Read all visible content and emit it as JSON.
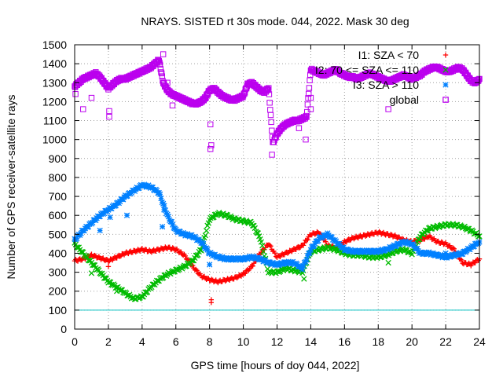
{
  "chart_data": {
    "type": "scatter",
    "title": "NRAYS. SISTED rt 30s mode. 044, 2022. Mask 30 deg",
    "xlabel": "GPS time [hours of doy 044, 2022]",
    "ylabel": "Number of GPS receiver-satellite rays",
    "xlim": [
      0,
      24
    ],
    "ylim": [
      0,
      1500
    ],
    "xticks": [
      "0",
      "2",
      "4",
      "6",
      "8",
      "10",
      "12",
      "14",
      "16",
      "18",
      "20",
      "22",
      "24"
    ],
    "yticks": [
      "0",
      "100",
      "200",
      "300",
      "400",
      "500",
      "600",
      "700",
      "800",
      "900",
      "1000",
      "1100",
      "1200",
      "1300",
      "1400",
      "1500"
    ],
    "grid": true,
    "legend_position": "top-right",
    "reference_line": {
      "y": 100,
      "color": "#00c0c0"
    },
    "series": [
      {
        "name": "I1: SZA < 70",
        "marker": "+",
        "color": "#ff0000",
        "x": [
          0,
          0.5,
          1,
          1.5,
          2,
          2.5,
          3,
          3.5,
          4,
          4.5,
          5,
          5.5,
          6,
          6.5,
          7,
          7.5,
          8,
          8.5,
          9,
          9.5,
          10,
          10.5,
          11,
          11.5,
          12,
          12.5,
          13,
          13.5,
          14,
          14.5,
          15,
          15.5,
          16,
          16.5,
          17,
          17.5,
          18,
          18.5,
          19,
          19.5,
          20,
          20.5,
          21,
          21.5,
          22,
          22.5,
          23,
          23.5,
          24
        ],
        "y": [
          360,
          370,
          390,
          375,
          360,
          380,
          400,
          410,
          420,
          410,
          420,
          430,
          420,
          390,
          330,
          280,
          260,
          250,
          260,
          270,
          290,
          330,
          400,
          450,
          380,
          400,
          420,
          440,
          500,
          510,
          440,
          430,
          460,
          480,
          490,
          500,
          510,
          500,
          490,
          470,
          460,
          470,
          490,
          460,
          450,
          420,
          350,
          340,
          370
        ]
      },
      {
        "name": "I2: 70 <= SZA <= 110",
        "marker": "x",
        "color": "#00bb00",
        "x": [
          0,
          0.5,
          1,
          1.5,
          2,
          2.5,
          3,
          3.5,
          4,
          4.5,
          5,
          5.5,
          6,
          6.5,
          7,
          7.5,
          8,
          8.5,
          9,
          9.5,
          10,
          10.5,
          11,
          11.5,
          12,
          12.5,
          13,
          13.5,
          14,
          14.5,
          15,
          15.5,
          16,
          16.5,
          17,
          17.5,
          18,
          18.5,
          19,
          19.5,
          20,
          20.5,
          21,
          21.5,
          22,
          22.5,
          23,
          23.5,
          24
        ],
        "y": [
          450,
          400,
          350,
          300,
          250,
          220,
          190,
          160,
          170,
          220,
          260,
          290,
          310,
          330,
          360,
          420,
          580,
          610,
          600,
          580,
          570,
          560,
          480,
          300,
          300,
          320,
          310,
          300,
          410,
          420,
          430,
          420,
          400,
          390,
          390,
          380,
          380,
          390,
          410,
          420,
          400,
          490,
          530,
          540,
          550,
          550,
          540,
          520,
          490
        ]
      },
      {
        "name": "I3: SZA > 110",
        "marker": "*",
        "color": "#0080ff",
        "x": [
          0,
          0.5,
          1,
          1.5,
          2,
          2.5,
          3,
          3.5,
          4,
          4.5,
          5,
          5.5,
          6,
          6.5,
          7,
          7.5,
          8,
          8.5,
          9,
          9.5,
          10,
          10.5,
          11,
          11.5,
          12,
          12.5,
          13,
          13.5,
          14,
          14.5,
          15,
          15.5,
          16,
          16.5,
          17,
          17.5,
          18,
          18.5,
          19,
          19.5,
          20,
          20.5,
          21,
          21.5,
          22,
          22.5,
          23,
          23.5,
          24
        ],
        "y": [
          470,
          520,
          560,
          600,
          630,
          660,
          700,
          730,
          760,
          750,
          720,
          600,
          520,
          500,
          490,
          460,
          400,
          380,
          370,
          370,
          370,
          380,
          370,
          350,
          340,
          350,
          350,
          320,
          420,
          480,
          500,
          460,
          420,
          410,
          410,
          410,
          410,
          420,
          440,
          460,
          450,
          400,
          400,
          390,
          380,
          390,
          400,
          430,
          460
        ]
      },
      {
        "name": "global",
        "marker": "square",
        "color": "#bb00ee",
        "x": [
          0,
          0.25,
          0.5,
          0.75,
          1,
          1.25,
          1.5,
          1.75,
          2,
          2.25,
          2.5,
          2.75,
          3,
          3.25,
          3.5,
          3.75,
          4,
          4.25,
          4.5,
          4.75,
          5,
          5.25,
          5.5,
          5.75,
          6,
          6.25,
          6.5,
          6.75,
          7,
          7.25,
          7.5,
          7.75,
          8,
          8.25,
          8.5,
          8.75,
          9,
          9.25,
          9.5,
          9.75,
          10,
          10.25,
          10.5,
          10.75,
          11,
          11.25,
          11.5,
          11.75,
          12,
          12.25,
          12.5,
          12.75,
          13,
          13.25,
          13.5,
          13.75,
          14,
          14.25,
          14.5,
          14.75,
          15,
          15.25,
          15.5,
          15.75,
          16,
          16.25,
          16.5,
          16.75,
          17,
          17.25,
          17.5,
          17.75,
          18,
          18.25,
          18.5,
          18.75,
          19,
          19.25,
          19.5,
          19.75,
          20,
          20.25,
          20.5,
          20.75,
          21,
          21.25,
          21.5,
          21.75,
          22,
          22.25,
          22.5,
          22.75,
          23,
          23.25,
          23.5,
          23.75,
          24
        ],
        "y": [
          1280,
          1300,
          1320,
          1330,
          1340,
          1350,
          1330,
          1300,
          1270,
          1290,
          1310,
          1320,
          1320,
          1330,
          1340,
          1350,
          1360,
          1370,
          1380,
          1400,
          1420,
          1300,
          1260,
          1240,
          1230,
          1220,
          1210,
          1200,
          1190,
          1190,
          1200,
          1220,
          1260,
          1270,
          1250,
          1230,
          1220,
          1210,
          1210,
          1220,
          1230,
          1290,
          1300,
          1280,
          1260,
          1250,
          1270,
          980,
          1030,
          1060,
          1080,
          1090,
          1100,
          1100,
          1110,
          1120,
          1370,
          1360,
          1350,
          1340,
          1350,
          1360,
          1370,
          1350,
          1340,
          1330,
          1330,
          1320,
          1330,
          1340,
          1350,
          1340,
          1330,
          1320,
          1310,
          1310,
          1320,
          1330,
          1340,
          1330,
          1320,
          1330,
          1340,
          1360,
          1370,
          1380,
          1380,
          1370,
          1360,
          1360,
          1370,
          1380,
          1370,
          1340,
          1310,
          1300,
          1320
        ]
      }
    ],
    "outliers": [
      {
        "series": "I1: SZA < 70",
        "x": 8.1,
        "y": 140
      },
      {
        "series": "I1: SZA < 70",
        "x": 8.1,
        "y": 155
      },
      {
        "series": "I1: SZA < 70",
        "x": 2.0,
        "y": 330
      },
      {
        "series": "I2: 70 <= SZA <= 110",
        "x": 1.0,
        "y": 295
      },
      {
        "series": "I2: 70 <= SZA <= 110",
        "x": 2.5,
        "y": 200
      },
      {
        "series": "I2: 70 <= SZA <= 110",
        "x": 18.6,
        "y": 350
      },
      {
        "series": "I2: 70 <= SZA <= 110",
        "x": 13.6,
        "y": 265
      },
      {
        "series": "I3: SZA > 110",
        "x": 1.5,
        "y": 520
      },
      {
        "series": "I3: SZA > 110",
        "x": 2.1,
        "y": 590
      },
      {
        "series": "I3: SZA > 110",
        "x": 3.1,
        "y": 600
      },
      {
        "series": "I3: SZA > 110",
        "x": 5.3,
        "y": 630
      },
      {
        "series": "I3: SZA > 110",
        "x": 5.2,
        "y": 540
      },
      {
        "series": "I3: SZA > 110",
        "x": 8.0,
        "y": 340
      },
      {
        "series": "I3: SZA > 110",
        "x": 22.0,
        "y": 400
      },
      {
        "series": "global",
        "x": 0.05,
        "y": 1240
      },
      {
        "series": "global",
        "x": 0.5,
        "y": 1160
      },
      {
        "series": "global",
        "x": 1.0,
        "y": 1220
      },
      {
        "series": "global",
        "x": 2.05,
        "y": 1150
      },
      {
        "series": "global",
        "x": 2.05,
        "y": 1120
      },
      {
        "series": "global",
        "x": 5.25,
        "y": 1450
      },
      {
        "series": "global",
        "x": 5.5,
        "y": 1300
      },
      {
        "series": "global",
        "x": 5.8,
        "y": 1180
      },
      {
        "series": "global",
        "x": 8.05,
        "y": 1080
      },
      {
        "series": "global",
        "x": 8.1,
        "y": 970
      },
      {
        "series": "global",
        "x": 8.05,
        "y": 950
      },
      {
        "series": "global",
        "x": 11.7,
        "y": 920
      },
      {
        "series": "global",
        "x": 13.3,
        "y": 1060
      },
      {
        "series": "global",
        "x": 13.7,
        "y": 1000
      },
      {
        "series": "global",
        "x": 14.0,
        "y": 1220
      },
      {
        "series": "global",
        "x": 14.0,
        "y": 1160
      },
      {
        "series": "global",
        "x": 18.6,
        "y": 1160
      },
      {
        "series": "global",
        "x": 22.0,
        "y": 1210
      }
    ]
  }
}
